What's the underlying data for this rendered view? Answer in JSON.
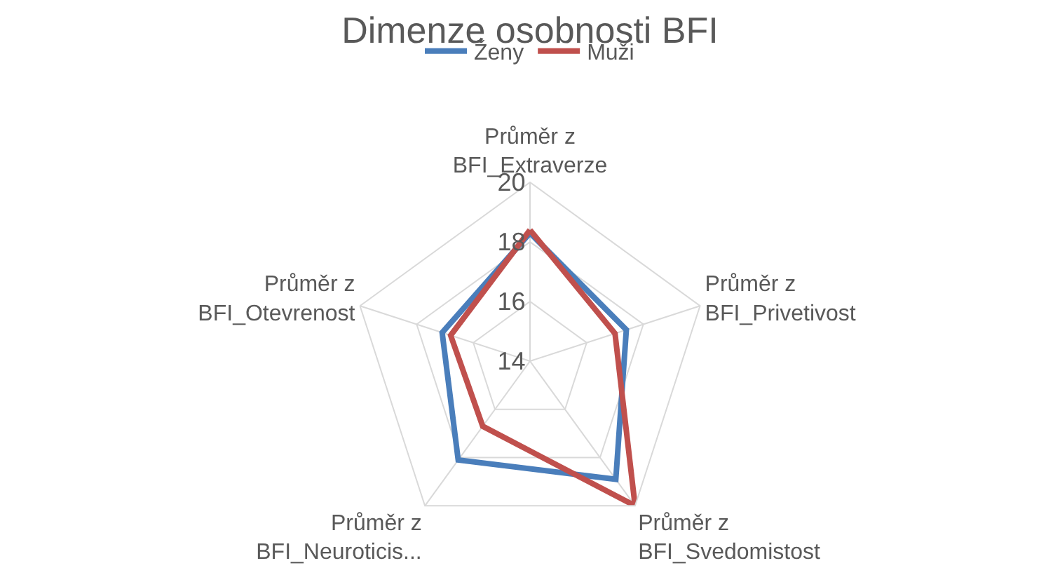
{
  "chart_data": {
    "type": "radar",
    "title": "Dimenze osobnosti BFI",
    "categories": [
      "Průměr z\nBFI_Extraverze",
      "Průměr z\nBFI_Privetivost",
      "Průměr z\nBFI_Svedomistost",
      "Průměr z\nBFI_Neuroticis...",
      "Průměr z\nBFI_Otevrenost"
    ],
    "series": [
      {
        "name": "Ženy",
        "color": "#4a7ebb",
        "values": [
          18.3,
          17.4,
          18.9,
          18.1,
          17.1
        ]
      },
      {
        "name": "Muži",
        "color": "#c0504d",
        "values": [
          18.4,
          17.0,
          20.0,
          16.7,
          16.8
        ]
      }
    ],
    "ylim": [
      14,
      20
    ],
    "yticks": [
      14,
      16,
      18,
      20
    ],
    "grid": true,
    "legend": "top",
    "marker": "none",
    "line_style": "solid"
  }
}
